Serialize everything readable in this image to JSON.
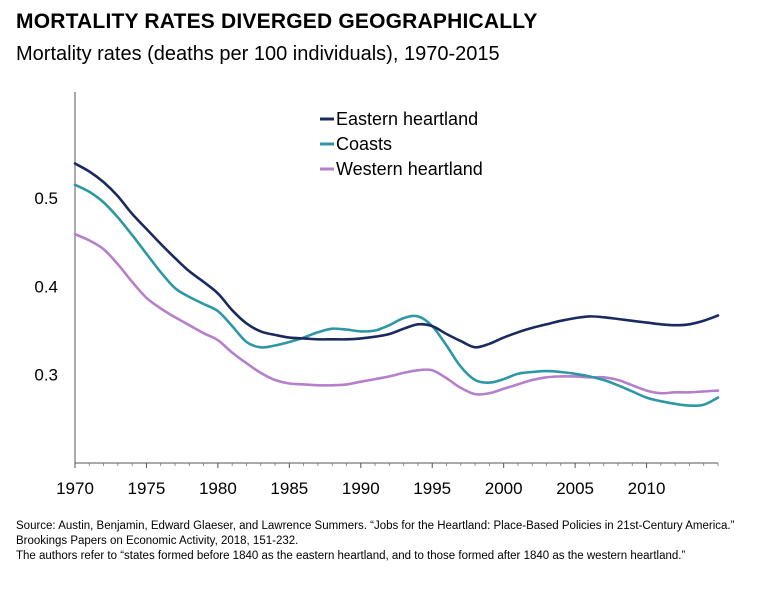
{
  "title": "MORTALITY RATES DIVERGED GEOGRAPHICALLY",
  "subtitle": "Mortality rates (deaths per 100 individuals), 1970-2015",
  "source_line": "Source: Austin, Benjamin, Edward Glaeser, and Lawrence Summers. “Jobs for the Heartland: Place-Based Policies in 21st-Century America.” Brookings Papers on Economic Activity, 2018, 151-232.",
  "note_line": "The authors refer to “states formed before 1840 as the eastern heartland, and to those formed after 1840 as the western heartland.”",
  "chart_data": {
    "type": "line",
    "title": "Mortality rates (deaths per 100 individuals), 1970-2015",
    "xlabel": "",
    "ylabel": "",
    "xlim": [
      1970,
      2015
    ],
    "ylim": [
      0.2,
      0.62
    ],
    "xticks": [
      1970,
      1975,
      1980,
      1985,
      1990,
      1995,
      2000,
      2005,
      2010
    ],
    "yticks": [
      0.3,
      0.4,
      0.5
    ],
    "grid": false,
    "legend_position": "top-center",
    "series": [
      {
        "name": "Eastern heartland",
        "color": "#1b2a5e",
        "x": [
          1970,
          1971,
          1972,
          1973,
          1974,
          1975,
          1976,
          1977,
          1978,
          1979,
          1980,
          1981,
          1982,
          1983,
          1984,
          1985,
          1986,
          1987,
          1988,
          1989,
          1990,
          1991,
          1992,
          1993,
          1994,
          1995,
          1996,
          1997,
          1998,
          1999,
          2000,
          2001,
          2002,
          2003,
          2004,
          2005,
          2006,
          2007,
          2008,
          2009,
          2010,
          2011,
          2012,
          2013,
          2014,
          2015
        ],
        "y": [
          0.539,
          0.53,
          0.518,
          0.502,
          0.482,
          0.465,
          0.448,
          0.432,
          0.417,
          0.405,
          0.392,
          0.373,
          0.358,
          0.349,
          0.345,
          0.342,
          0.341,
          0.34,
          0.34,
          0.34,
          0.341,
          0.343,
          0.346,
          0.352,
          0.357,
          0.355,
          0.346,
          0.338,
          0.331,
          0.335,
          0.342,
          0.348,
          0.353,
          0.357,
          0.361,
          0.364,
          0.366,
          0.365,
          0.363,
          0.361,
          0.359,
          0.357,
          0.356,
          0.357,
          0.361,
          0.367
        ]
      },
      {
        "name": "Coasts",
        "color": "#2e97a6",
        "x": [
          1970,
          1971,
          1972,
          1973,
          1974,
          1975,
          1976,
          1977,
          1978,
          1979,
          1980,
          1981,
          1982,
          1983,
          1984,
          1985,
          1986,
          1987,
          1988,
          1989,
          1990,
          1991,
          1992,
          1993,
          1994,
          1995,
          1996,
          1997,
          1998,
          1999,
          2000,
          2001,
          2002,
          2003,
          2004,
          2005,
          2006,
          2007,
          2008,
          2009,
          2010,
          2011,
          2012,
          2013,
          2014,
          2015
        ],
        "y": [
          0.515,
          0.507,
          0.495,
          0.478,
          0.458,
          0.437,
          0.416,
          0.398,
          0.388,
          0.38,
          0.372,
          0.355,
          0.337,
          0.331,
          0.333,
          0.337,
          0.342,
          0.348,
          0.352,
          0.351,
          0.349,
          0.35,
          0.356,
          0.364,
          0.366,
          0.355,
          0.333,
          0.309,
          0.294,
          0.291,
          0.295,
          0.301,
          0.303,
          0.304,
          0.303,
          0.301,
          0.298,
          0.294,
          0.288,
          0.281,
          0.274,
          0.27,
          0.267,
          0.265,
          0.266,
          0.274
        ]
      },
      {
        "name": "Western heartland",
        "color": "#b57fcc",
        "x": [
          1970,
          1971,
          1972,
          1973,
          1974,
          1975,
          1976,
          1977,
          1978,
          1979,
          1980,
          1981,
          1982,
          1983,
          1984,
          1985,
          1986,
          1987,
          1988,
          1989,
          1990,
          1991,
          1992,
          1993,
          1994,
          1995,
          1996,
          1997,
          1998,
          1999,
          2000,
          2001,
          2002,
          2003,
          2004,
          2005,
          2006,
          2007,
          2008,
          2009,
          2010,
          2011,
          2012,
          2013,
          2014,
          2015
        ],
        "y": [
          0.459,
          0.452,
          0.442,
          0.425,
          0.405,
          0.387,
          0.375,
          0.365,
          0.356,
          0.347,
          0.339,
          0.325,
          0.313,
          0.302,
          0.294,
          0.29,
          0.289,
          0.288,
          0.288,
          0.289,
          0.292,
          0.295,
          0.298,
          0.302,
          0.305,
          0.305,
          0.296,
          0.285,
          0.278,
          0.279,
          0.284,
          0.289,
          0.294,
          0.297,
          0.298,
          0.298,
          0.297,
          0.297,
          0.294,
          0.288,
          0.282,
          0.279,
          0.28,
          0.28,
          0.281,
          0.282
        ]
      }
    ]
  }
}
